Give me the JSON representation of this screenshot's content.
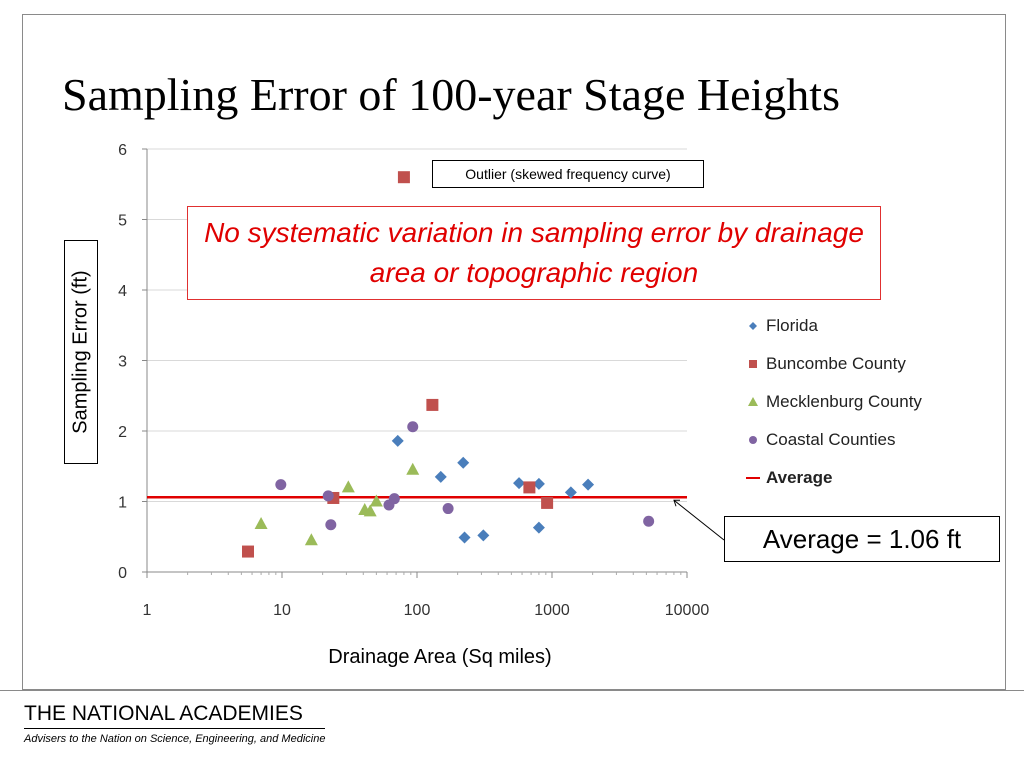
{
  "slide": {
    "title": "Sampling Error of 100-year Stage Heights",
    "outlier_note": "Outlier (skewed frequency curve)",
    "finding_note": "No systematic variation in sampling error by drainage area or topographic region",
    "average_callout": "Average = 1.06 ft"
  },
  "footer": {
    "organization": "THE NATIONAL ACADEMIES",
    "tagline": "Advisers to the Nation on Science, Engineering, and Medicine"
  },
  "chart_data": {
    "type": "scatter",
    "xlabel": "Drainage Area (Sq miles)",
    "ylabel": "Sampling Error (ft)",
    "xscale": "log",
    "xlim": [
      1,
      10000
    ],
    "ylim": [
      0,
      6
    ],
    "xticks": [
      "1",
      "10",
      "100",
      "1000",
      "10000"
    ],
    "yticks": [
      "0",
      "1",
      "2",
      "3",
      "4",
      "5",
      "6"
    ],
    "grid": "horizontal",
    "legend_position": "right",
    "average": {
      "label": "Average",
      "value": 1.06,
      "color": "#e00000"
    },
    "series": [
      {
        "name": "Florida",
        "marker": "diamond",
        "color": "#4a7ebb",
        "points": [
          [
            72,
            1.86
          ],
          [
            150,
            1.35
          ],
          [
            220,
            1.55
          ],
          [
            225,
            0.49
          ],
          [
            310,
            0.52
          ],
          [
            570,
            1.26
          ],
          [
            800,
            1.25
          ],
          [
            800,
            0.63
          ],
          [
            1380,
            1.13
          ],
          [
            1850,
            1.24
          ]
        ]
      },
      {
        "name": "Buncombe County",
        "marker": "square",
        "color": "#c0504d",
        "points": [
          [
            5.6,
            0.29
          ],
          [
            24,
            1.05
          ],
          [
            80,
            5.6
          ],
          [
            130,
            2.37
          ],
          [
            680,
            1.2
          ],
          [
            920,
            0.98
          ]
        ]
      },
      {
        "name": "Mecklenburg County",
        "marker": "triangle",
        "color": "#9bbb59",
        "points": [
          [
            7,
            0.68
          ],
          [
            16.5,
            0.45
          ],
          [
            31,
            1.2
          ],
          [
            41,
            0.88
          ],
          [
            45,
            0.86
          ],
          [
            50,
            1.0
          ],
          [
            93,
            1.45
          ]
        ]
      },
      {
        "name": "Coastal Counties",
        "marker": "circle",
        "color": "#8064a2",
        "points": [
          [
            9.8,
            1.24
          ],
          [
            22,
            1.08
          ],
          [
            23,
            0.67
          ],
          [
            62,
            0.95
          ],
          [
            68,
            1.04
          ],
          [
            93,
            2.06
          ],
          [
            170,
            0.9
          ],
          [
            5200,
            0.72
          ]
        ]
      }
    ]
  }
}
